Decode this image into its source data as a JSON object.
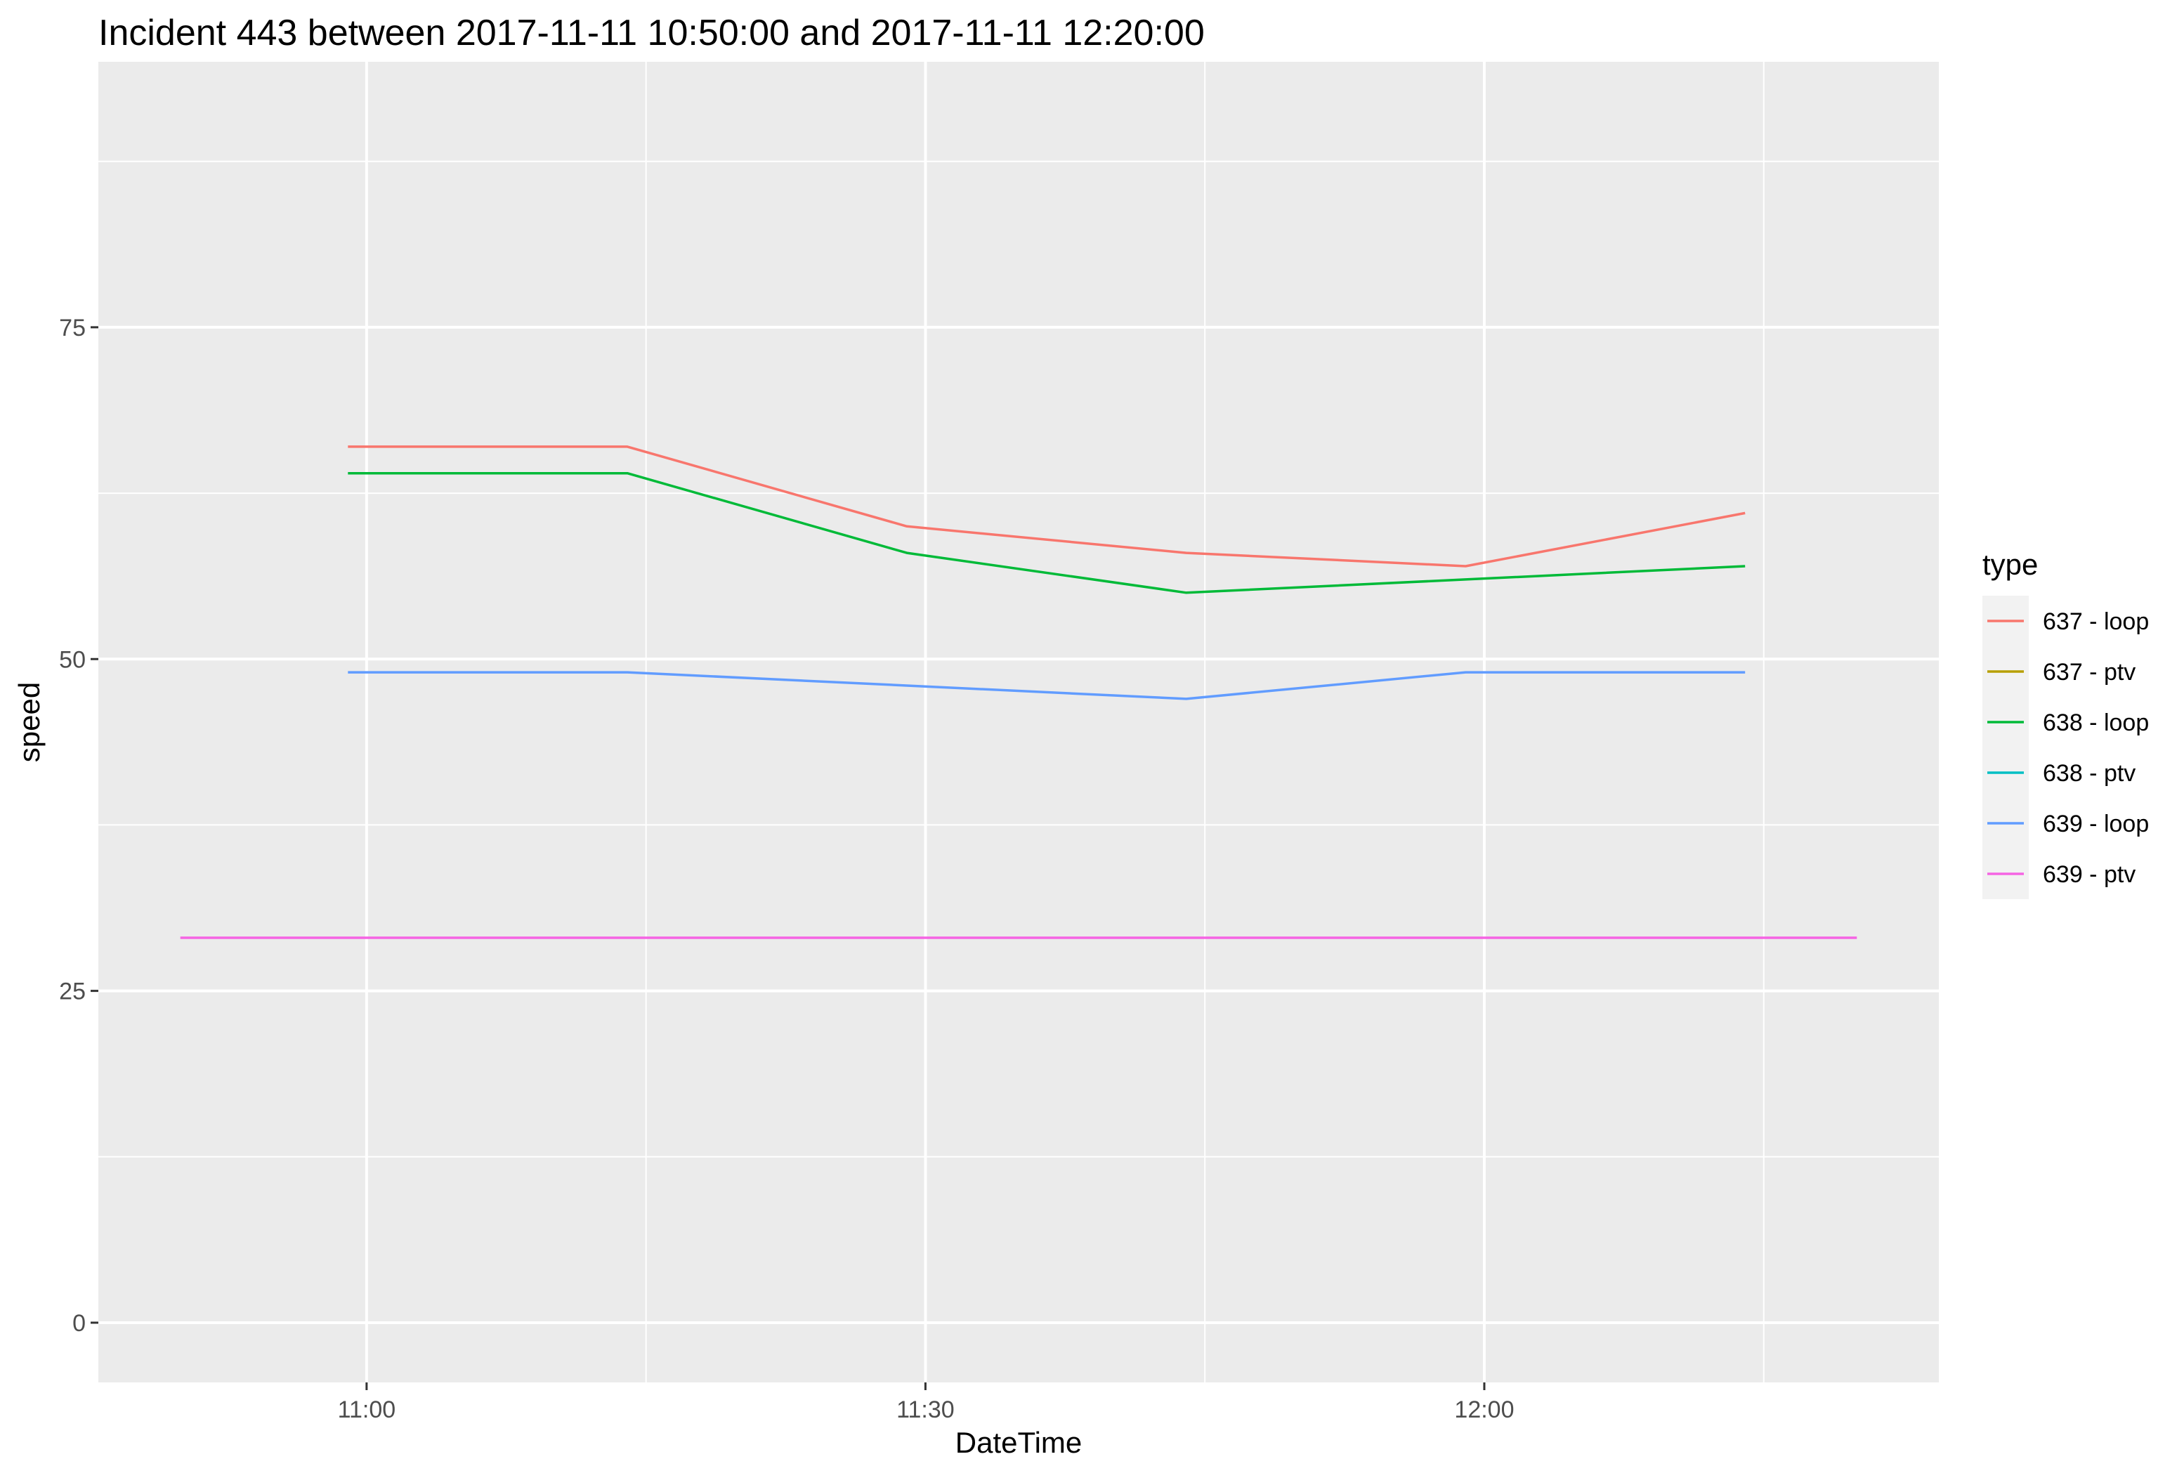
{
  "chart_data": {
    "type": "line",
    "title": "Incident 443 between 2017-11-11 10:50:00 and 2017-11-11 12:20:00",
    "xlabel": "DateTime",
    "ylabel": "speed",
    "x_ticks": [
      "11:00",
      "11:30",
      "12:00"
    ],
    "y_ticks": [
      "0",
      "25",
      "50",
      "75"
    ],
    "xlim": [
      "10:45:36",
      "12:24:24"
    ],
    "ylim": [
      -4.5,
      95
    ],
    "grid": true,
    "legend": {
      "title": "type",
      "position": "right"
    },
    "series": [
      {
        "name": "637 - loop",
        "color": "#F8766D",
        "x": [
          "10:59",
          "11:14",
          "11:29",
          "11:44",
          "11:59",
          "12:14"
        ],
        "y": [
          66,
          66,
          60,
          58,
          57,
          61
        ]
      },
      {
        "name": "637 - ptv",
        "color": "#B79F00",
        "x": [],
        "y": []
      },
      {
        "name": "638 - loop",
        "color": "#00BA38",
        "x": [
          "10:59",
          "11:14",
          "11:29",
          "11:44",
          "11:59",
          "12:14"
        ],
        "y": [
          64,
          64,
          58,
          55,
          56,
          57
        ]
      },
      {
        "name": "638 - ptv",
        "color": "#00BFC4",
        "x": [],
        "y": []
      },
      {
        "name": "639 - loop",
        "color": "#619CFF",
        "x": [
          "10:59",
          "11:14",
          "11:29",
          "11:44",
          "11:59",
          "12:14"
        ],
        "y": [
          49,
          49,
          48,
          47,
          49,
          49
        ]
      },
      {
        "name": "639 - ptv",
        "color": "#F564E3",
        "x": [
          "10:50",
          "12:20"
        ],
        "y": [
          29,
          29
        ]
      }
    ]
  }
}
